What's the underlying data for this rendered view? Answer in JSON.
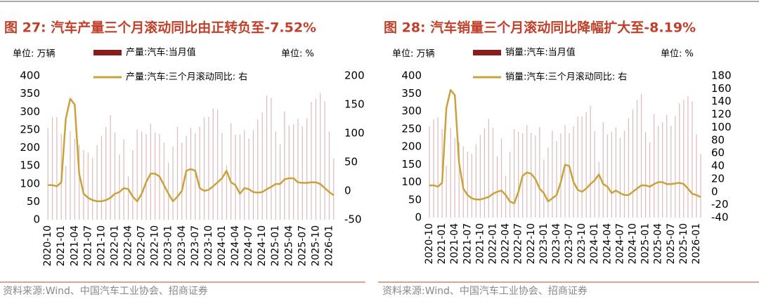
{
  "chart_data": [
    {
      "type": "combo",
      "title": "图 27:  汽车产量三个月滚动同比由正转负至-7.52%",
      "unit_left": "单位:  万辆",
      "unit_right": "单位:  %",
      "source": "资料来源:Wind、中国汽车工业协会、招商证券",
      "categories": [
        "2020-10",
        null,
        null,
        "2021-01",
        null,
        null,
        "2021-04",
        null,
        null,
        "2021-07",
        null,
        null,
        "2021-10",
        null,
        null,
        "2022-01",
        null,
        null,
        "2022-04",
        null,
        null,
        "2022-07",
        null,
        null,
        "2022-10",
        null,
        null,
        "2023-01",
        null,
        null,
        "2023-04",
        null,
        null,
        "2023-07",
        null,
        null,
        "2023-10",
        null,
        null,
        "2024-01",
        null,
        null,
        "2024-04",
        null,
        null,
        "2024-07",
        null,
        null,
        "2024-10",
        null,
        null,
        "2025-01",
        null,
        null,
        "2025-04",
        null,
        null,
        "2025-07",
        null,
        null,
        "2025-10",
        null,
        null,
        "2026-01",
        null
      ],
      "ylim": [
        0,
        400
      ],
      "yticks": [
        0,
        50,
        100,
        150,
        200,
        250,
        300,
        350,
        400
      ],
      "y2lim": [
        -50,
        200
      ],
      "y2ticks": [
        -50,
        0,
        50,
        100,
        150,
        200
      ],
      "series": [
        {
          "name": "产量:汽车:当月值",
          "color": "#8b1c1c",
          "kind": "bar",
          "axis": "y",
          "values": [
            255,
            285,
            285,
            238,
            150,
            246,
            225,
            209,
            194,
            186,
            172,
            207,
            233,
            258,
            291,
            242,
            181,
            224,
            121,
            193,
            250,
            245,
            238,
            267,
            243,
            239,
            214,
            159,
            203,
            258,
            214,
            233,
            256,
            240,
            258,
            285,
            286,
            309,
            307,
            241,
            151,
            268,
            236,
            237,
            250,
            226,
            249,
            279,
            299,
            345,
            339,
            245,
            210,
            301,
            262,
            265,
            280,
            259,
            282,
            327,
            336,
            352,
            330,
            245,
            170
          ]
        },
        {
          "name": "产量:汽车:三个月滚动同比:  右",
          "color": "#c9a23a",
          "kind": "line",
          "axis": "y2",
          "values": [
            10,
            10,
            8,
            15,
            125,
            160,
            150,
            30,
            -5,
            -12,
            -16,
            -18,
            -18,
            -16,
            -12,
            -5,
            -2,
            5,
            3,
            -10,
            -18,
            -5,
            15,
            30,
            30,
            25,
            10,
            -5,
            -18,
            -10,
            0,
            35,
            38,
            35,
            5,
            0,
            2,
            8,
            15,
            22,
            35,
            15,
            10,
            -5,
            5,
            3,
            -2,
            -3,
            -2,
            3,
            7,
            12,
            12,
            20,
            22,
            22,
            15,
            14,
            14,
            15,
            15,
            12,
            5,
            -2,
            -7.52
          ]
        }
      ]
    },
    {
      "type": "combo",
      "title": "图 28:  汽车销量三个月滚动同比降幅扩大至-8.19%",
      "unit_left": "单位:  万辆",
      "unit_right": "单位:  %",
      "source": "资料来源:Wind、中国汽车工业协会、招商证券",
      "categories": [
        "2020-10",
        null,
        null,
        "2021-01",
        null,
        null,
        "2021-04",
        null,
        null,
        "2021-07",
        null,
        null,
        "2021-10",
        null,
        null,
        "2022-01",
        null,
        null,
        "2022-04",
        null,
        null,
        "2022-07",
        null,
        null,
        "2022-10",
        null,
        null,
        "2023-01",
        null,
        null,
        "2023-04",
        null,
        null,
        "2023-07",
        null,
        null,
        "2023-10",
        null,
        null,
        "2024-01",
        null,
        null,
        "2024-04",
        null,
        null,
        "2024-07",
        null,
        null,
        "2024-10",
        null,
        null,
        "2025-01",
        null,
        null,
        "2025-04",
        null,
        null,
        "2025-07",
        null,
        null,
        "2025-10",
        null,
        null,
        "2026-01",
        null
      ],
      "ylim": [
        0,
        400
      ],
      "yticks": [
        0,
        50,
        100,
        150,
        200,
        250,
        300,
        350,
        400
      ],
      "y2lim": [
        -40,
        180
      ],
      "y2ticks": [
        -40,
        -20,
        0,
        20,
        40,
        60,
        80,
        100,
        120,
        140,
        160,
        180
      ],
      "series": [
        {
          "name": "销量:汽车:当月值",
          "color": "#8b1c1c",
          "kind": "bar",
          "axis": "y",
          "values": [
            257,
            277,
            283,
            250,
            146,
            253,
            225,
            213,
            201,
            186,
            180,
            207,
            233,
            252,
            279,
            253,
            173,
            223,
            118,
            186,
            250,
            242,
            238,
            261,
            239,
            232,
            256,
            164,
            198,
            245,
            216,
            238,
            262,
            239,
            258,
            285,
            285,
            297,
            316,
            244,
            158,
            269,
            235,
            242,
            255,
            226,
            245,
            281,
            305,
            332,
            349,
            242,
            213,
            292,
            259,
            269,
            290,
            259,
            286,
            323,
            332,
            343,
            328,
            235,
            180
          ]
        },
        {
          "name": "销量:汽车:三个月滚动同比:  右",
          "color": "#c9a23a",
          "kind": "line",
          "axis": "y2",
          "values": [
            10,
            10,
            8,
            14,
            130,
            158,
            150,
            45,
            5,
            -5,
            -10,
            -12,
            -12,
            -10,
            -8,
            -3,
            0,
            2,
            -5,
            -15,
            -18,
            0,
            25,
            30,
            28,
            20,
            5,
            -2,
            -15,
            -10,
            -5,
            15,
            42,
            40,
            15,
            3,
            0,
            5,
            12,
            18,
            27,
            12,
            8,
            -2,
            2,
            -2,
            -5,
            -5,
            0,
            5,
            10,
            10,
            8,
            12,
            15,
            15,
            12,
            12,
            13,
            14,
            12,
            5,
            -3,
            -5,
            -8.19
          ]
        }
      ]
    }
  ]
}
